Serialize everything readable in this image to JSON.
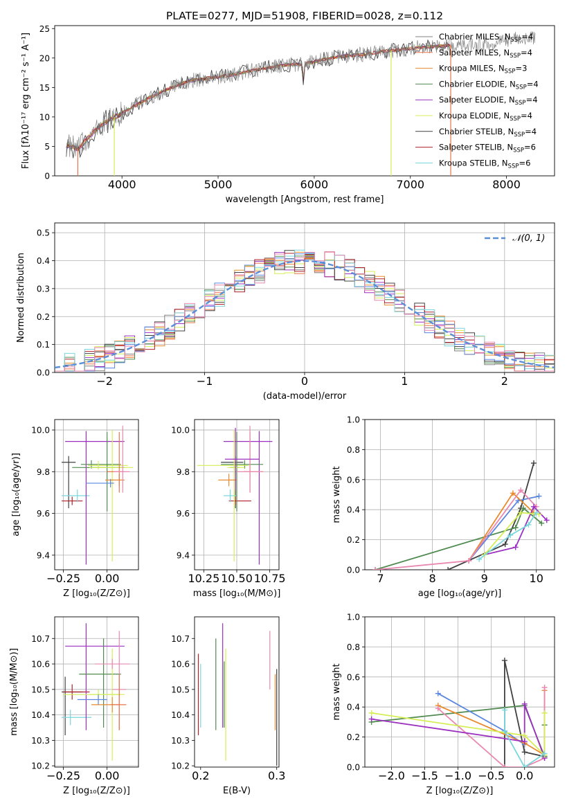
{
  "title": "PLATE=0277, MJD=51908, FIBERID=0028, z=0.112",
  "colors": {
    "chabrier_miles": "#808080",
    "salpeter_miles": "#e8734a",
    "kroupa_miles": "#e98a2e",
    "chabrier_elodie": "#4f8a4f",
    "salpeter_elodie": "#9b30c0",
    "kroupa_elodie": "#d4ee55",
    "chabrier_stelib": "#404040",
    "salpeter_stelib": "#b0202a",
    "kroupa_stelib": "#79d6dc",
    "normal_curve": "#5a8fd8",
    "pink": "#e887b0",
    "blue": "#5a86e0"
  },
  "chart_data": [
    {
      "id": "spectrum",
      "type": "line",
      "title": "PLATE=0277, MJD=51908, FIBERID=0028, z=0.112",
      "xlabel": "wavelength [Angstrom, rest frame]",
      "ylabel": "Flux [fλ10⁻¹⁷ erg cm⁻² s⁻¹ A⁻¹]",
      "xlim": [
        3300,
        8500
      ],
      "ylim": [
        0,
        25.5
      ],
      "xticks": [
        4000,
        5000,
        6000,
        7000,
        8000
      ],
      "yticks": [
        0,
        5,
        10,
        15,
        20,
        25
      ],
      "legend": "top-right",
      "series": [
        {
          "name": "Chabrier MILES, N_SSP=4",
          "color": "#808080"
        },
        {
          "name": "Salpeter MILES, N_SSP=4",
          "color": "#e8734a"
        },
        {
          "name": "Kroupa MILES, N_SSP=3",
          "color": "#e98a2e"
        },
        {
          "name": "Chabrier ELODIE, N_SSP=4",
          "color": "#4f8a4f"
        },
        {
          "name": "Salpeter ELODIE, N_SSP=4",
          "color": "#9b30c0"
        },
        {
          "name": "Kroupa ELODIE, N_SSP=4",
          "color": "#d4ee55"
        },
        {
          "name": "Chabrier STELIB, N_SSP=4",
          "color": "#404040"
        },
        {
          "name": "Salpeter STELIB, N_SSP=6",
          "color": "#b0202a"
        },
        {
          "name": "Kroupa STELIB, N_SSP=6",
          "color": "#79d6dc"
        }
      ],
      "trend": {
        "x": [
          3420,
          3550,
          3650,
          3800,
          3950,
          4100,
          4300,
          4500,
          4700,
          4900,
          5100,
          5300,
          5500,
          5700,
          5900,
          6100,
          6300,
          6500,
          6700,
          6900,
          7100,
          7300,
          7500,
          7700,
          7900,
          8100,
          8270
        ],
        "y": [
          5.3,
          4.6,
          6.5,
          8.8,
          10.2,
          11.6,
          13.4,
          14.9,
          16.1,
          16.6,
          17.0,
          17.7,
          18.3,
          18.8,
          19.0,
          19.8,
          20.3,
          20.6,
          21.1,
          21.4,
          21.8,
          22.0,
          22.2,
          22.3,
          22.5,
          23.4,
          23.5
        ]
      }
    },
    {
      "id": "residuals",
      "type": "line",
      "xlabel": "(data-model)/error",
      "ylabel": "Normed distribution",
      "xlim": [
        -2.5,
        2.5
      ],
      "ylim": [
        0,
        0.535
      ],
      "xticks": [
        -2,
        -1,
        0,
        1,
        2
      ],
      "yticks": [
        0.0,
        0.1,
        0.2,
        0.3,
        0.4,
        0.5
      ],
      "legend": "top-right",
      "curve_label": "𝒩(0, 1)",
      "normal_mean": 0,
      "normal_sigma": 1,
      "bin_width": 0.1
    },
    {
      "id": "age_vs_Z",
      "type": "scatter",
      "xlabel": "Z [log₁₀(Z/Z⊙)]",
      "ylabel": "age  [log₁₀(age/yr)]",
      "xlim": [
        -0.3,
        0.18
      ],
      "ylim": [
        9.33,
        10.05
      ],
      "xticks": [
        -0.25,
        0.0
      ],
      "yticks": [
        9.4,
        9.6,
        9.8,
        10.0
      ],
      "points": [
        {
          "x": -0.22,
          "y": 9.845,
          "xerr": [
            0.04,
            0.04
          ],
          "yerr": [
            0.22,
            0.03
          ],
          "color": "#404040"
        },
        {
          "x": -0.2,
          "y": 9.66,
          "xerr": [
            0.06,
            0.06
          ],
          "yerr": [
            0.02,
            0.02
          ],
          "color": "#b0202a"
        },
        {
          "x": -0.17,
          "y": 9.685,
          "xerr": [
            0.09,
            0.07
          ],
          "yerr": [
            0.03,
            0.03
          ],
          "color": "#79d6dc"
        },
        {
          "x": -0.12,
          "y": 9.945,
          "xerr": [
            0.12,
            0.22
          ],
          "yerr": [
            0.59,
            0.05
          ],
          "color": "#9b30c0"
        },
        {
          "x": -0.09,
          "y": 9.835,
          "xerr": [
            0.06,
            0.17
          ],
          "yerr": [
            0.02,
            0.02
          ],
          "color": "#4f8a4f"
        },
        {
          "x": -0.05,
          "y": 9.83,
          "xerr": [
            0.06,
            0.17
          ],
          "yerr": [
            0.02,
            0.02
          ],
          "color": "#d4ee55"
        },
        {
          "x": 0.0,
          "y": 9.82,
          "xerr": [
            0.2,
            0.1
          ],
          "yerr": [
            0.21,
            0.17
          ],
          "color": "#4f8a4f"
        },
        {
          "x": 0.03,
          "y": 9.82,
          "xerr": [
            0.13,
            0.12
          ],
          "yerr": [
            0.45,
            0.18
          ],
          "color": "#d4ee55"
        },
        {
          "x": 0.07,
          "y": 9.76,
          "xerr": [
            0.08,
            0.03
          ],
          "yerr": [
            0.03,
            0.03
          ],
          "color": "#e98a2e"
        },
        {
          "x": 0.07,
          "y": 9.8,
          "xerr": [
            0.07,
            0.03
          ],
          "yerr": [
            0.1,
            0.19
          ],
          "color": "#e8734a"
        },
        {
          "x": 0.09,
          "y": 9.8,
          "xerr": [
            0.05,
            0.04
          ],
          "yerr": [
            0.1,
            0.22
          ],
          "color": "#e887b0"
        },
        {
          "x": 0.02,
          "y": 9.745,
          "xerr": [
            0.14,
            0.02
          ],
          "yerr": [
            0.02,
            0.02
          ],
          "color": "#5a86e0"
        }
      ]
    },
    {
      "id": "age_vs_mass",
      "type": "scatter",
      "xlabel": "mass [log₁₀(M/M⊙)]",
      "xlim": [
        10.18,
        10.82
      ],
      "ylim": [
        9.33,
        10.05
      ],
      "xticks": [
        10.25,
        10.5,
        10.75
      ],
      "yticks": [
        9.4,
        9.6,
        9.8,
        10.0
      ],
      "points": [
        {
          "x": 10.49,
          "y": 9.845,
          "xerr": [
            0.11,
            0.06
          ],
          "yerr": [
            0.22,
            0.03
          ],
          "color": "#404040"
        },
        {
          "x": 10.49,
          "y": 9.66,
          "xerr": [
            0.05,
            0.12
          ],
          "yerr": [
            0.02,
            0.02
          ],
          "color": "#b0202a"
        },
        {
          "x": 10.45,
          "y": 9.685,
          "xerr": [
            0.05,
            0.05
          ],
          "yerr": [
            0.03,
            0.03
          ],
          "color": "#79d6dc"
        },
        {
          "x": 10.67,
          "y": 9.945,
          "xerr": [
            0.27,
            0.1
          ],
          "yerr": [
            0.59,
            0.05
          ],
          "color": "#9b30c0"
        },
        {
          "x": 10.56,
          "y": 9.835,
          "xerr": [
            0.18,
            0.14
          ],
          "yerr": [
            0.02,
            0.02
          ],
          "color": "#4f8a4f"
        },
        {
          "x": 10.48,
          "y": 9.83,
          "xerr": [
            0.28,
            0.11
          ],
          "yerr": [
            0.02,
            0.02
          ],
          "color": "#d4ee55"
        },
        {
          "x": 10.5,
          "y": 9.82,
          "xerr": [
            0.05,
            0.02
          ],
          "yerr": [
            0.21,
            0.17
          ],
          "color": "#4f8a4f"
        },
        {
          "x": 10.48,
          "y": 9.82,
          "xerr": [
            0.05,
            0.08
          ],
          "yerr": [
            0.45,
            0.18
          ],
          "color": "#d4ee55"
        },
        {
          "x": 10.44,
          "y": 9.76,
          "xerr": [
            0.08,
            0.06
          ],
          "yerr": [
            0.03,
            0.03
          ],
          "color": "#e98a2e"
        },
        {
          "x": 10.6,
          "y": 9.8,
          "xerr": [
            0.05,
            0.1
          ],
          "yerr": [
            0.1,
            0.19
          ],
          "color": "#e8734a"
        },
        {
          "x": 10.6,
          "y": 9.8,
          "xerr": [
            0.1,
            0.1
          ],
          "yerr": [
            0.1,
            0.22
          ],
          "color": "#e887b0"
        },
        {
          "x": 10.49,
          "y": 9.86,
          "xerr": [
            0.08,
            0.18
          ],
          "yerr": [
            0.15,
            0.15
          ],
          "color": "#9b30c0"
        }
      ]
    },
    {
      "id": "weight_vs_age",
      "type": "line",
      "xlabel": "age  [log₁₀(age/yr)]",
      "ylabel": "mass weight",
      "xlim": [
        6.7,
        10.35
      ],
      "ylim": [
        0,
        1.0
      ],
      "xticks": [
        7,
        8,
        9,
        10
      ],
      "yticks": [
        0.0,
        0.2,
        0.4,
        0.6,
        0.8,
        1.0
      ],
      "series": [
        {
          "color": "#404040",
          "x": [
            8.3,
            9.4,
            9.7,
            9.95
          ],
          "y": [
            0.0,
            0.17,
            0.41,
            0.71
          ]
        },
        {
          "color": "#4f8a4f",
          "x": [
            6.9,
            9.6,
            9.75,
            10.1
          ],
          "y": [
            0.0,
            0.28,
            0.41,
            0.31
          ]
        },
        {
          "color": "#5a86e0",
          "x": [
            8.7,
            9.65,
            10.05
          ],
          "y": [
            0.06,
            0.46,
            0.49
          ]
        },
        {
          "color": "#e98a2e",
          "x": [
            8.7,
            9.55,
            9.95
          ],
          "y": [
            0.06,
            0.51,
            0.38
          ]
        },
        {
          "color": "#e887b0",
          "x": [
            6.9,
            8.7,
            9.7,
            10.0
          ],
          "y": [
            0.0,
            0.06,
            0.53,
            0.42
          ]
        },
        {
          "color": "#9b30c0",
          "x": [
            9.0,
            9.6,
            9.95,
            10.2
          ],
          "y": [
            0.1,
            0.15,
            0.42,
            0.33
          ]
        },
        {
          "color": "#d4ee55",
          "x": [
            9.0,
            9.7,
            10.05
          ],
          "y": [
            0.1,
            0.38,
            0.37
          ]
        },
        {
          "color": "#79d6dc",
          "x": [
            8.9,
            9.5,
            9.85,
            10.0
          ],
          "y": [
            0.07,
            0.23,
            0.3,
            0.38
          ]
        }
      ]
    },
    {
      "id": "mass_vs_Z",
      "type": "scatter",
      "xlabel": "Z [log₁₀(Z/Z⊙)]",
      "ylabel": "mass [log₁₀(M/M⊙)]",
      "xlim": [
        -0.3,
        0.18
      ],
      "ylim": [
        10.195,
        10.785
      ],
      "xticks": [
        -0.25,
        0.0
      ],
      "yticks": [
        10.2,
        10.3,
        10.4,
        10.5,
        10.6,
        10.7
      ],
      "points": [
        {
          "x": -0.24,
          "y": 10.49,
          "xerr": [
            0.02,
            0.1
          ],
          "yerr": [
            0.17,
            0.06
          ],
          "color": "#404040"
        },
        {
          "x": -0.2,
          "y": 10.49,
          "xerr": [
            0.05,
            0.1
          ],
          "yerr": [
            0.03,
            0.03
          ],
          "color": "#b0202a"
        },
        {
          "x": -0.21,
          "y": 10.39,
          "xerr": [
            0.05,
            0.12
          ],
          "yerr": [
            0.03,
            0.03
          ],
          "color": "#79d6dc"
        },
        {
          "x": -0.12,
          "y": 10.67,
          "xerr": [
            0.12,
            0.22
          ],
          "yerr": [
            0.33,
            0.09
          ],
          "color": "#9b30c0"
        },
        {
          "x": -0.02,
          "y": 10.56,
          "xerr": [
            0.14,
            0.1
          ],
          "yerr": [
            0.21,
            0.14
          ],
          "color": "#4f8a4f"
        },
        {
          "x": -0.05,
          "y": 10.48,
          "xerr": [
            0.2,
            0.15
          ],
          "yerr": [
            0.02,
            0.02
          ],
          "color": "#d4ee55"
        },
        {
          "x": 0.03,
          "y": 10.48,
          "xerr": [
            0.13,
            0.05
          ],
          "yerr": [
            0.26,
            0.18
          ],
          "color": "#d4ee55"
        },
        {
          "x": 0.03,
          "y": 10.44,
          "xerr": [
            0.12,
            0.04
          ],
          "yerr": [
            0.03,
            0.03
          ],
          "color": "#e98a2e"
        },
        {
          "x": 0.03,
          "y": 10.6,
          "xerr": [
            0.1,
            0.1
          ],
          "yerr": [
            0.02,
            0.02
          ],
          "color": "#e887b0"
        },
        {
          "x": 0.07,
          "y": 10.5,
          "xerr": [
            0.04,
            0.04
          ],
          "yerr": [
            0.16,
            0.23
          ],
          "color": "#e887b0"
        },
        {
          "x": 0.07,
          "y": 10.44,
          "xerr": [
            0.05,
            0.04
          ],
          "yerr": [
            0.1,
            0.12
          ],
          "color": "#e8734a"
        },
        {
          "x": -0.05,
          "y": 10.46,
          "xerr": [
            0.12,
            0.05
          ],
          "yerr": [
            0.02,
            0.02
          ],
          "color": "#5a86e0"
        }
      ]
    },
    {
      "id": "mass_vs_EBV",
      "type": "scatter",
      "xlabel": "E(B-V)",
      "xlim": [
        0.192,
        0.303
      ],
      "ylim": [
        10.195,
        10.785
      ],
      "xticks": [
        0.2,
        0.3
      ],
      "yticks": [
        10.2,
        10.3,
        10.4,
        10.5,
        10.6,
        10.7
      ],
      "points": [
        {
          "x": 0.197,
          "y": 10.45,
          "yerr": [
            0.13,
            0.19
          ],
          "color": "#b0202a"
        },
        {
          "x": 0.2,
          "y": 10.4,
          "yerr": [
            0.05,
            0.2
          ],
          "color": "#79d6dc"
        },
        {
          "x": 0.22,
          "y": 10.52,
          "yerr": [
            0.18,
            0.18
          ],
          "color": "#4f8a4f"
        },
        {
          "x": 0.229,
          "y": 10.56,
          "yerr": [
            0.21,
            0.2
          ],
          "color": "#9b30c0"
        },
        {
          "x": 0.233,
          "y": 10.44,
          "yerr": [
            0.22,
            0.22
          ],
          "color": "#d4ee55"
        },
        {
          "x": 0.231,
          "y": 10.48,
          "yerr": [
            0.13,
            0.13
          ],
          "color": "#4f8a4f"
        },
        {
          "x": 0.291,
          "y": 10.6,
          "yerr": [
            0.1,
            0.13
          ],
          "color": "#e887b0"
        },
        {
          "x": 0.298,
          "y": 10.46,
          "yerr": [
            0.12,
            0.1
          ],
          "color": "#e98a2e"
        },
        {
          "x": 0.3,
          "y": 10.45,
          "yerr": [
            0.25,
            0.13
          ],
          "color": "#404040"
        }
      ]
    },
    {
      "id": "weight_vs_Z",
      "type": "line",
      "xlabel": "Z [log₁₀(Z/Z⊙)]",
      "ylabel": "mass weight",
      "xlim": [
        -2.4,
        0.45
      ],
      "ylim": [
        0,
        1.0
      ],
      "xticks": [
        -2.0,
        -1.5,
        -1.0,
        -0.5,
        0.0
      ],
      "yticks": [
        0.0,
        0.2,
        0.4,
        0.6,
        0.8,
        1.0
      ],
      "series": [
        {
          "color": "#404040",
          "x": [
            -0.3,
            -0.3,
            0.0,
            0.3
          ],
          "y": [
            0.0,
            0.71,
            0.1,
            0.07
          ]
        },
        {
          "color": "#4f8a4f",
          "x": [
            -2.3,
            0.0,
            0.3,
            0.3
          ],
          "y": [
            0.3,
            0.41,
            0.07,
            0.28
          ]
        },
        {
          "color": "#5a86e0",
          "x": [
            -1.3,
            -0.3,
            0.0
          ],
          "y": [
            0.49,
            0.24,
            0.15
          ]
        },
        {
          "color": "#e98a2e",
          "x": [
            -1.3,
            0.0,
            0.3,
            0.3
          ],
          "y": [
            0.41,
            0.16,
            0.08,
            0.51
          ]
        },
        {
          "color": "#e887b0",
          "x": [
            -1.3,
            -0.3,
            0.0,
            0.3,
            0.3
          ],
          "y": [
            0.39,
            0.0,
            0.0,
            0.06,
            0.53
          ]
        },
        {
          "color": "#9b30c0",
          "x": [
            -2.3,
            0.0,
            0.0,
            0.3
          ],
          "y": [
            0.32,
            0.17,
            0.42,
            0.06
          ]
        },
        {
          "color": "#d4ee55",
          "x": [
            -2.3,
            0.0,
            0.3,
            0.3
          ],
          "y": [
            0.36,
            0.21,
            0.08,
            0.36
          ]
        },
        {
          "color": "#79d6dc",
          "x": [
            -0.3,
            -0.3,
            0.0,
            0.3
          ],
          "y": [
            0.38,
            0.24,
            0.0,
            0.09
          ]
        }
      ]
    }
  ]
}
